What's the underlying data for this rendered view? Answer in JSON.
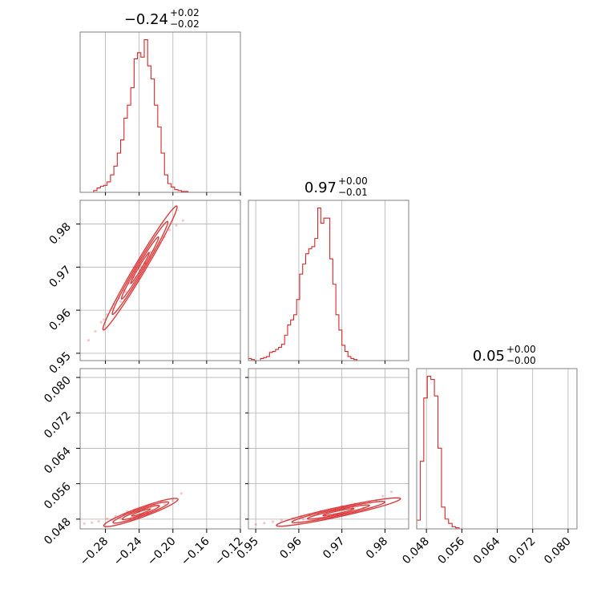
{
  "colors": {
    "series": "#d62728",
    "grid": "#b0b0b0",
    "frame": "#808080"
  },
  "chart_data": {
    "type": "corner",
    "grid": true,
    "parameters": [
      {
        "ticks": [
          -0.28,
          -0.24,
          -0.2,
          -0.16,
          -0.12
        ],
        "tick_labels": [
          "−0.28",
          "−0.24",
          "−0.20",
          "−0.16",
          "−0.12"
        ],
        "range": [
          -0.31,
          -0.12
        ]
      },
      {
        "ticks": [
          0.95,
          0.96,
          0.97,
          0.98
        ],
        "tick_labels": [
          "0.95",
          "0.96",
          "0.97",
          "0.98"
        ],
        "range": [
          0.9483,
          0.9855
        ]
      },
      {
        "ticks": [
          0.048,
          0.056,
          0.064,
          0.072,
          0.08
        ],
        "tick_labels": [
          "0.048",
          "0.056",
          "0.064",
          "0.072",
          "0.080"
        ],
        "range": [
          0.0458,
          0.082
        ]
      }
    ],
    "titles": [
      {
        "value": "−0.24",
        "plus": "+0.02",
        "minus": "−0.02"
      },
      {
        "value": "0.97",
        "plus": "+0.00",
        "minus": "−0.01"
      },
      {
        "value": "0.05",
        "plus": "+0.00",
        "minus": "−0.00"
      }
    ],
    "histograms": [
      {
        "param": 0,
        "edges": [
          -0.31,
          -0.306,
          -0.302,
          -0.298,
          -0.294,
          -0.29,
          -0.286,
          -0.282,
          -0.278,
          -0.274,
          -0.27,
          -0.266,
          -0.262,
          -0.258,
          -0.254,
          -0.25,
          -0.246,
          -0.242,
          -0.238,
          -0.234,
          -0.23,
          -0.226,
          -0.222,
          -0.218,
          -0.214,
          -0.21,
          -0.206,
          -0.202,
          -0.198,
          -0.194,
          -0.19,
          -0.186,
          -0.182,
          -0.178,
          -0.174,
          -0.17,
          -0.166,
          -0.162,
          -0.158,
          -0.154,
          -0.15,
          -0.146,
          -0.142,
          -0.138,
          -0.134,
          -0.13,
          -0.126,
          -0.122
        ],
        "counts": [
          0,
          0,
          0,
          0,
          2,
          5,
          7,
          8,
          12,
          20,
          30,
          45,
          60,
          85,
          100,
          120,
          153,
          160,
          155,
          175,
          145,
          130,
          100,
          75,
          45,
          20,
          10,
          6,
          3,
          2,
          1,
          1,
          0,
          0,
          0,
          0,
          0,
          0,
          0,
          0,
          0,
          0,
          0,
          0,
          0,
          0,
          0
        ]
      },
      {
        "param": 1,
        "edges": [
          0.9483,
          0.949,
          0.9497,
          0.9504,
          0.9511,
          0.9518,
          0.9525,
          0.9532,
          0.9539,
          0.9546,
          0.9553,
          0.956,
          0.9567,
          0.9574,
          0.9581,
          0.9588,
          0.9595,
          0.9602,
          0.9609,
          0.9616,
          0.9623,
          0.963,
          0.9637,
          0.9644,
          0.9651,
          0.9658,
          0.9665,
          0.9672,
          0.9679,
          0.9686,
          0.9693,
          0.97,
          0.9707,
          0.9714,
          0.9721,
          0.9728,
          0.9735,
          0.9742,
          0.9749,
          0.9756,
          0.9763,
          0.977,
          0.9777,
          0.9784,
          0.9791,
          0.9798,
          0.9805,
          0.9812,
          0.9819,
          0.9826,
          0.9833,
          0.984,
          0.9847,
          0.9855
        ],
        "counts": [
          2,
          1,
          0,
          0,
          2,
          3,
          4,
          8,
          9,
          11,
          13,
          16,
          25,
          35,
          40,
          45,
          60,
          85,
          95,
          105,
          110,
          112,
          120,
          150,
          135,
          140,
          140,
          100,
          75,
          45,
          30,
          15,
          9,
          4,
          2,
          1,
          0,
          0,
          0,
          0,
          0,
          0,
          0,
          0,
          0,
          0,
          0,
          0,
          0,
          0,
          0,
          0,
          0
        ]
      },
      {
        "param": 2,
        "edges": [
          0.0458,
          0.0466,
          0.0474,
          0.0482,
          0.049,
          0.0498,
          0.0506,
          0.0514,
          0.0522,
          0.053,
          0.0538,
          0.0546,
          0.0554,
          0.0562,
          0.057,
          0.0578,
          0.0586
        ],
        "counts": [
          8,
          62,
          120,
          140,
          137,
          122,
          74,
          20,
          9,
          5,
          2,
          1,
          0,
          0,
          0,
          0
        ]
      }
    ],
    "scatter_2d": [
      {
        "x_param": 0,
        "y_param": 1,
        "points": [
          [
            -0.3,
            0.953
          ],
          [
            -0.292,
            0.9551
          ],
          [
            -0.285,
            0.9572
          ],
          [
            -0.278,
            0.959
          ],
          [
            -0.27,
            0.9614
          ],
          [
            -0.264,
            0.9628
          ],
          [
            -0.258,
            0.9646
          ],
          [
            -0.252,
            0.9662
          ],
          [
            -0.246,
            0.9678
          ],
          [
            -0.24,
            0.9695
          ],
          [
            -0.234,
            0.971
          ],
          [
            -0.228,
            0.9725
          ],
          [
            -0.222,
            0.974
          ],
          [
            -0.216,
            0.9755
          ],
          [
            -0.21,
            0.977
          ],
          [
            -0.204,
            0.9786
          ],
          [
            -0.196,
            0.9797
          ],
          [
            -0.188,
            0.9808
          ],
          [
            -0.256,
            0.9642
          ],
          [
            -0.244,
            0.969
          ],
          [
            -0.232,
            0.9708
          ],
          [
            -0.226,
            0.9735
          ],
          [
            -0.262,
            0.962
          ],
          [
            -0.238,
            0.9702
          ],
          [
            -0.218,
            0.9748
          ],
          [
            -0.248,
            0.9674
          ],
          [
            -0.272,
            0.9605
          ],
          [
            -0.282,
            0.9578
          ]
        ]
      },
      {
        "x_param": 0,
        "y_param": 2,
        "points": [
          [
            -0.305,
            0.047
          ],
          [
            -0.296,
            0.0472
          ],
          [
            -0.288,
            0.0475
          ],
          [
            -0.278,
            0.0481
          ],
          [
            -0.268,
            0.0486
          ],
          [
            -0.258,
            0.049
          ],
          [
            -0.25,
            0.0493
          ],
          [
            -0.242,
            0.0496
          ],
          [
            -0.234,
            0.05
          ],
          [
            -0.226,
            0.0504
          ],
          [
            -0.218,
            0.0509
          ],
          [
            -0.21,
            0.0514
          ],
          [
            -0.2,
            0.0522
          ],
          [
            -0.19,
            0.0538
          ],
          [
            -0.262,
            0.0482
          ],
          [
            -0.246,
            0.0501
          ],
          [
            -0.23,
            0.0494
          ],
          [
            -0.222,
            0.0512
          ],
          [
            -0.238,
            0.0489
          ],
          [
            -0.254,
            0.0497
          ],
          [
            -0.272,
            0.0478
          ],
          [
            -0.214,
            0.052
          ]
        ]
      },
      {
        "x_param": 1,
        "y_param": 2,
        "points": [
          [
            0.95,
            0.0468
          ],
          [
            0.952,
            0.0471
          ],
          [
            0.954,
            0.0474
          ],
          [
            0.956,
            0.0478
          ],
          [
            0.9585,
            0.0482
          ],
          [
            0.9605,
            0.0486
          ],
          [
            0.9625,
            0.0489
          ],
          [
            0.9645,
            0.0492
          ],
          [
            0.9665,
            0.0495
          ],
          [
            0.9685,
            0.0499
          ],
          [
            0.9705,
            0.0503
          ],
          [
            0.9725,
            0.0507
          ],
          [
            0.9745,
            0.0512
          ],
          [
            0.9765,
            0.0517
          ],
          [
            0.978,
            0.0522
          ],
          [
            0.9795,
            0.0532
          ],
          [
            0.9815,
            0.0542
          ],
          [
            0.961,
            0.048
          ],
          [
            0.965,
            0.0498
          ],
          [
            0.969,
            0.049
          ],
          [
            0.973,
            0.0515
          ],
          [
            0.97,
            0.0509
          ],
          [
            0.966,
            0.0486
          ],
          [
            0.975,
            0.0505
          ]
        ]
      }
    ],
    "contours_2d": [
      {
        "x_param": 0,
        "y_param": 1,
        "rho": 0.985,
        "center": [
          -0.239,
          0.9698
        ],
        "sigma": [
          0.022,
          0.0072
        ]
      },
      {
        "x_param": 0,
        "y_param": 2,
        "rho": 0.93,
        "center": [
          -0.238,
          0.0495
        ],
        "sigma": [
          0.022,
          0.0016
        ]
      },
      {
        "x_param": 1,
        "y_param": 2,
        "rho": 0.94,
        "center": [
          0.9692,
          0.0496
        ],
        "sigma": [
          0.0072,
          0.0016
        ]
      }
    ],
    "contour_levels_sigma": [
      0.5,
      1.0,
      1.5,
      2.0
    ]
  }
}
